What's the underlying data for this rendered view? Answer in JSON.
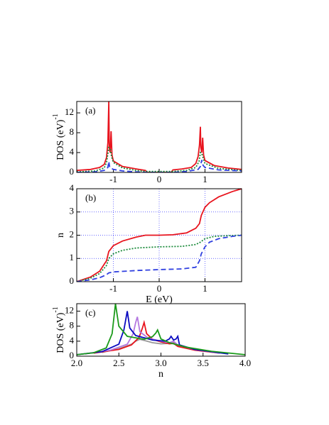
{
  "chart_data": [
    {
      "type": "line",
      "label": "(a)",
      "ylabel": "DOS (eV)",
      "ylabel_sup": "-1",
      "xlim": [
        -1.8,
        1.8
      ],
      "ylim": [
        0,
        14.3
      ],
      "xticks": [
        -1,
        0,
        1
      ],
      "yticks": [
        0,
        4,
        8,
        12
      ],
      "grid": false,
      "series": [
        {
          "color": "#e8141e",
          "style": "solid",
          "x": [
            -1.8,
            -1.5,
            -1.3,
            -1.2,
            -1.15,
            -1.12,
            -1.1,
            -1.09,
            -1.07,
            -1.05,
            -1.03,
            -1.0,
            -0.8,
            -0.5,
            -0.3,
            -0.26,
            0.26,
            0.3,
            0.5,
            0.7,
            0.8,
            0.85,
            0.88,
            0.9,
            0.91,
            0.93,
            0.95,
            0.97,
            1.0,
            1.2,
            1.5,
            1.8
          ],
          "values": [
            0.4,
            0.6,
            1.0,
            1.6,
            3.0,
            6.0,
            14.3,
            5.0,
            4.0,
            8.3,
            3.5,
            2.3,
            1.2,
            0.7,
            0.4,
            0,
            0,
            0.5,
            0.7,
            1.0,
            1.8,
            3.2,
            5.5,
            9.2,
            5.0,
            4.0,
            7.0,
            3.5,
            2.4,
            1.4,
            0.9,
            0.6
          ]
        },
        {
          "color": "#1a8a3a",
          "style": "dotted",
          "x": [
            -1.8,
            -1.4,
            -1.2,
            -1.15,
            -1.1,
            -1.07,
            -1.04,
            -1.0,
            -0.8,
            -0.5,
            -0.3,
            0.3,
            0.6,
            0.8,
            0.87,
            0.9,
            0.93,
            0.97,
            1.0,
            1.3,
            1.8
          ],
          "values": [
            0.1,
            0.3,
            0.9,
            2.0,
            5.0,
            4.8,
            3.2,
            2.0,
            0.9,
            0.4,
            0.2,
            0.2,
            0.4,
            1.0,
            2.2,
            4.0,
            3.8,
            2.6,
            1.8,
            0.8,
            0.4
          ]
        },
        {
          "color": "#3040e0",
          "style": "dashed",
          "x": [
            -1.8,
            -1.4,
            -1.2,
            -1.12,
            -1.1,
            -1.08,
            -1.0,
            -0.8,
            -0.5,
            -0.3,
            0.3,
            0.6,
            0.85,
            0.9,
            0.93,
            0.96,
            1.0,
            1.3,
            1.8
          ],
          "values": [
            0,
            0.1,
            0.4,
            1.0,
            2.2,
            1.0,
            0.6,
            0.3,
            0.1,
            0,
            0,
            0.2,
            0.6,
            1.2,
            2.5,
            1.4,
            1.0,
            0.5,
            0.3
          ]
        }
      ]
    },
    {
      "type": "line",
      "label": "(b)",
      "ylabel": "n",
      "xlabel": "E (eV)",
      "xlim": [
        -1.8,
        1.8
      ],
      "ylim": [
        0,
        4
      ],
      "xticks": [
        -1,
        0,
        1
      ],
      "yticks": [
        0,
        1,
        2,
        3,
        4
      ],
      "grid": true,
      "series": [
        {
          "color": "#e8141e",
          "style": "solid",
          "x": [
            -1.8,
            -1.5,
            -1.3,
            -1.15,
            -1.1,
            -1.0,
            -0.8,
            -0.5,
            -0.3,
            0,
            0.3,
            0.6,
            0.8,
            0.88,
            0.92,
            1.0,
            1.1,
            1.3,
            1.6,
            1.8
          ],
          "values": [
            0,
            0.2,
            0.45,
            0.9,
            1.3,
            1.55,
            1.75,
            1.92,
            2.0,
            2.0,
            2.02,
            2.1,
            2.3,
            2.5,
            2.85,
            3.2,
            3.4,
            3.65,
            3.88,
            4.0
          ]
        },
        {
          "color": "#1a8a3a",
          "style": "dotted",
          "x": [
            -1.8,
            -1.5,
            -1.3,
            -1.15,
            -1.1,
            -1.0,
            -0.8,
            -0.5,
            0,
            0.5,
            0.8,
            0.9,
            1.0,
            1.2,
            1.5,
            1.8
          ],
          "values": [
            0,
            0.15,
            0.35,
            0.7,
            1.0,
            1.2,
            1.35,
            1.45,
            1.5,
            1.52,
            1.6,
            1.7,
            1.85,
            1.95,
            1.98,
            2.0
          ]
        },
        {
          "color": "#3040e0",
          "style": "dashed",
          "x": [
            -1.8,
            -1.5,
            -1.3,
            -1.15,
            -1.1,
            -1.0,
            -0.5,
            0,
            0.5,
            0.8,
            0.88,
            0.92,
            1.0,
            1.1,
            1.3,
            1.6,
            1.8
          ],
          "values": [
            0,
            0.08,
            0.17,
            0.3,
            0.38,
            0.42,
            0.48,
            0.52,
            0.55,
            0.62,
            0.9,
            1.2,
            1.5,
            1.7,
            1.85,
            1.95,
            2.0
          ]
        }
      ]
    },
    {
      "type": "line",
      "label": "(c)",
      "ylabel": "DOS (eV)",
      "ylabel_sup": "-1",
      "xlabel": "n",
      "xlim": [
        2,
        4
      ],
      "ylim": [
        0,
        14
      ],
      "xticks": [
        {
          "value": 2,
          "label": "2.0"
        },
        2.5,
        {
          "value": 3,
          "label": "3.0"
        },
        3.5,
        {
          "value": 4,
          "label": "4.0"
        }
      ],
      "yticks": [
        0,
        4,
        8,
        12
      ],
      "grid": false,
      "series": [
        {
          "color": "#999999",
          "style": "solid",
          "x": [
            2.3,
            2.5,
            2.65,
            2.7,
            2.75,
            2.8,
            2.9,
            3.0,
            3.1,
            3.15,
            3.2,
            3.4,
            3.7
          ],
          "values": [
            1.0,
            2.0,
            3.2,
            4.0,
            4.5,
            4.2,
            3.6,
            3.3,
            3.4,
            3.6,
            2.8,
            1.8,
            1.0
          ]
        },
        {
          "color": "#e8141e",
          "style": "solid",
          "x": [
            2.2,
            2.5,
            2.65,
            2.74,
            2.78,
            2.8,
            2.83,
            2.9,
            3.0,
            3.1,
            3.15,
            3.2,
            3.4,
            3.7
          ],
          "values": [
            0.8,
            1.8,
            3.0,
            5.0,
            7.5,
            9.0,
            6.0,
            4.5,
            3.8,
            3.3,
            3.4,
            2.6,
            1.6,
            0.8
          ]
        },
        {
          "color": "#b478e0",
          "style": "solid",
          "x": [
            2.1,
            2.4,
            2.6,
            2.67,
            2.7,
            2.72,
            2.75,
            2.85,
            3.0,
            3.1,
            3.15,
            3.2,
            3.4,
            3.7
          ],
          "values": [
            0.6,
            1.6,
            3.2,
            6.0,
            9.0,
            10.5,
            6.5,
            4.8,
            4.0,
            3.6,
            4.0,
            3.0,
            1.8,
            0.8
          ]
        },
        {
          "color": "#0a0ac0",
          "style": "solid",
          "x": [
            2.0,
            2.3,
            2.5,
            2.56,
            2.6,
            2.63,
            2.7,
            2.9,
            3.05,
            3.1,
            3.12,
            3.15,
            3.18,
            3.2,
            3.22,
            3.4,
            3.8
          ],
          "values": [
            0.4,
            1.2,
            3.2,
            7.0,
            12.0,
            7.5,
            5.5,
            4.3,
            4.0,
            4.6,
            5.3,
            4.3,
            4.6,
            5.3,
            3.0,
            1.8,
            0.6
          ]
        },
        {
          "color": "#1a9a1a",
          "style": "solid",
          "x": [
            2.0,
            2.2,
            2.35,
            2.42,
            2.46,
            2.5,
            2.6,
            2.8,
            2.9,
            2.94,
            2.96,
            3.0,
            3.1,
            3.3,
            3.6,
            4.0
          ],
          "values": [
            0.4,
            0.9,
            2.2,
            6.0,
            14.0,
            8.0,
            5.3,
            4.5,
            5.2,
            6.2,
            7.0,
            4.6,
            3.6,
            2.4,
            1.3,
            0.4
          ]
        }
      ]
    }
  ]
}
